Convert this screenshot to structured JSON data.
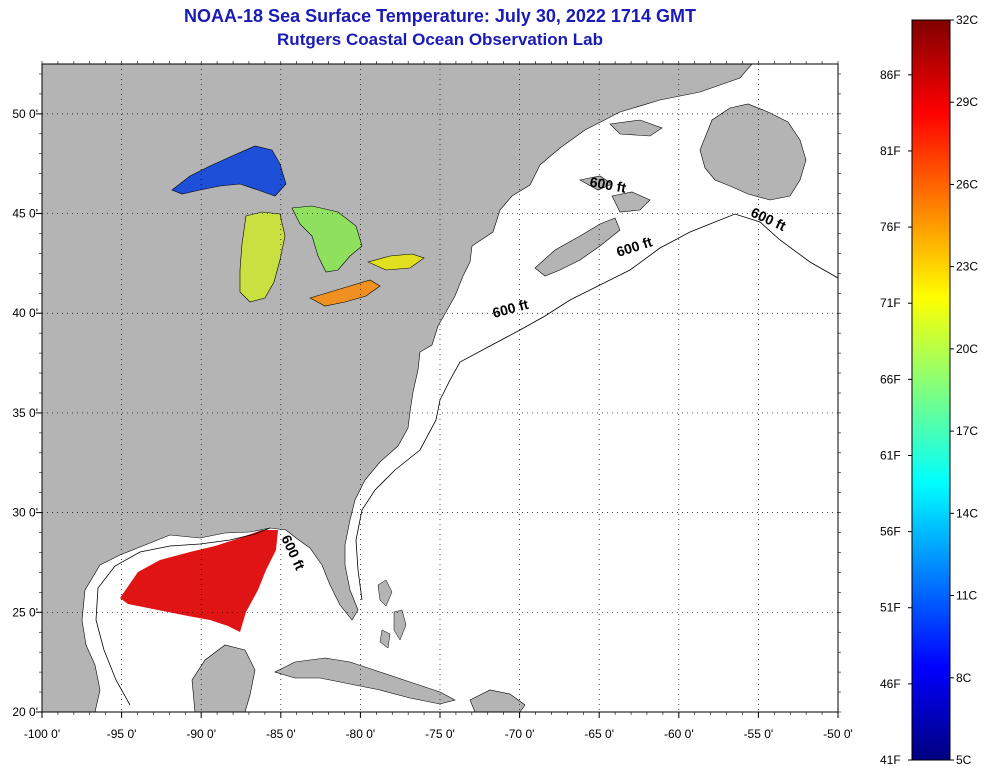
{
  "title": "NOAA-18 Sea Surface Temperature:  July 30, 2022 1714 GMT",
  "subtitle": "Rutgers Coastal Ocean Observation Lab",
  "map": {
    "lon_range": [
      -100,
      -50
    ],
    "lat_range": [
      20,
      52.5
    ],
    "lon_ticks": [
      -100,
      -95,
      -90,
      -85,
      -80,
      -75,
      -70,
      -65,
      -60,
      -55,
      -50
    ],
    "lon_tick_labels": [
      "-100 0'",
      "-95 0'",
      "-90 0'",
      "-85 0'",
      "-80 0'",
      "-75 0'",
      "-70 0'",
      "-65 0'",
      "-60 0'",
      "-55 0'",
      "-50 0'"
    ],
    "lat_ticks": [
      20,
      25,
      30,
      35,
      40,
      45,
      50
    ],
    "lat_tick_labels": [
      "20 0'",
      "25 0'",
      "30 0'",
      "35 0'",
      "40 0'",
      "45 0'",
      "50 0'"
    ],
    "grid": "dotted",
    "land_color": "#b4b4b4",
    "water_color": "#ffffff",
    "isobath_label": "600 ft",
    "isobath_labels": [
      {
        "lon": -64.5,
        "lat": 46.2,
        "angle": 10
      },
      {
        "lon": -54.5,
        "lat": 44.5,
        "angle": 25
      },
      {
        "lon": -62.7,
        "lat": 43.1,
        "angle": -18
      },
      {
        "lon": -70.5,
        "lat": 40.0,
        "angle": -15
      },
      {
        "lon": -84.5,
        "lat": 27.9,
        "angle": 65
      }
    ]
  },
  "colorbar": {
    "celsius_labels": [
      "32C",
      "29C",
      "26C",
      "23C",
      "20C",
      "17C",
      "14C",
      "11C",
      "8C",
      "5C"
    ],
    "celsius_values": [
      32,
      29,
      26,
      23,
      20,
      17,
      14,
      11,
      8,
      5
    ],
    "fahrenheit_labels": [
      "86F",
      "81F",
      "76F",
      "71F",
      "66F",
      "61F",
      "56F",
      "51F",
      "46F",
      "41F"
    ],
    "fahrenheit_values": [
      86,
      81,
      76,
      71,
      66,
      61,
      56,
      51,
      46,
      41
    ],
    "range_c": [
      5,
      32
    ],
    "colors": [
      "#00007f",
      "#0000ff",
      "#007fff",
      "#00ffff",
      "#7fff7f",
      "#ffff00",
      "#ff7f00",
      "#ff0000",
      "#7f0000"
    ]
  }
}
